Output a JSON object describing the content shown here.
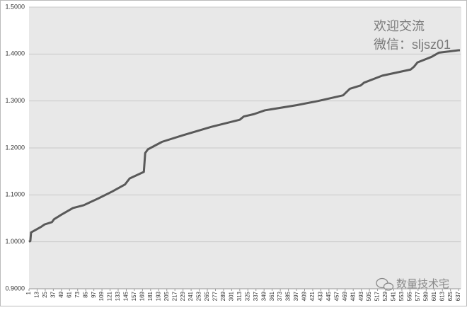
{
  "chart_data": {
    "type": "line",
    "annotations": [
      "欢迎交流",
      "微信：sljsz01",
      "数量技术宅"
    ],
    "x": [
      1,
      3,
      4,
      19,
      24,
      35,
      38,
      48,
      66,
      82,
      103,
      124,
      143,
      150,
      171,
      173,
      177,
      198,
      229,
      271,
      313,
      319,
      334,
      350,
      397,
      429,
      466,
      476,
      492,
      497,
      524,
      566,
      571,
      576,
      597,
      608,
      637,
      639
    ],
    "series": [
      {
        "color": "#595959",
        "values": [
          1.0,
          1.002,
          1.02,
          1.032,
          1.037,
          1.042,
          1.048,
          1.057,
          1.072,
          1.078,
          1.092,
          1.107,
          1.122,
          1.135,
          1.149,
          1.189,
          1.197,
          1.213,
          1.227,
          1.245,
          1.26,
          1.267,
          1.272,
          1.28,
          1.291,
          1.3,
          1.312,
          1.326,
          1.333,
          1.339,
          1.354,
          1.367,
          1.373,
          1.382,
          1.394,
          1.403,
          1.408,
          1.408
        ]
      }
    ],
    "xlim": [
      1,
      640
    ],
    "xticks": [
      1,
      13,
      25,
      37,
      49,
      61,
      73,
      85,
      97,
      109,
      121,
      133,
      145,
      157,
      169,
      181,
      193,
      205,
      217,
      229,
      241,
      253,
      265,
      277,
      289,
      301,
      313,
      325,
      337,
      349,
      361,
      373,
      385,
      397,
      409,
      421,
      433,
      445,
      457,
      469,
      481,
      493,
      505,
      517,
      529,
      541,
      553,
      565,
      577,
      589,
      601,
      613,
      625,
      637
    ],
    "ylim": [
      0.9,
      1.5
    ],
    "yticks": [
      {
        "value": 0.9,
        "label": "0.9000"
      },
      {
        "value": 1.0,
        "label": "1.0000"
      },
      {
        "value": 1.1,
        "label": "1.1000"
      },
      {
        "value": 1.2,
        "label": "1.2000"
      },
      {
        "value": 1.3,
        "label": "1.3000"
      },
      {
        "value": 1.4,
        "label": "1.4000"
      },
      {
        "value": 1.5,
        "label": "1.5000"
      }
    ],
    "grid": true
  }
}
